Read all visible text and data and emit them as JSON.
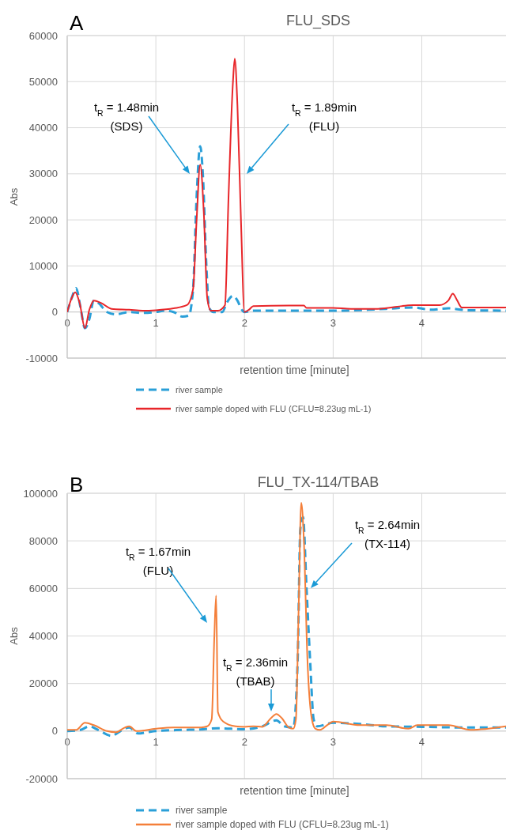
{
  "chart_data": [
    {
      "type": "line",
      "title": "FLU_SDS",
      "xlabel": "retention time [minute]",
      "ylabel": "Abs",
      "xlim": [
        0,
        4.95
      ],
      "ylim": [
        -10000,
        60000
      ],
      "xticks": [
        0,
        1,
        2,
        3,
        4
      ],
      "yticks": [
        -10000,
        0,
        10000,
        20000,
        30000,
        40000,
        50000,
        60000
      ],
      "grid": true,
      "legend": "bottom",
      "marker": "none",
      "annotations": [
        "A",
        "t$_{R}$ = 1.48min\n(SDS)",
        "t$_{R}$ = 1.89min\n(FLU)"
      ],
      "series": [
        {
          "name": "river sample",
          "color": "#2a9fd8",
          "line_style": "dashed",
          "x": [
            0,
            0.05,
            0.1,
            0.15,
            0.2,
            0.25,
            0.3,
            0.35,
            0.45,
            0.55,
            0.7,
            0.85,
            1.0,
            1.1,
            1.2,
            1.3,
            1.37,
            1.42,
            1.46,
            1.5,
            1.53,
            1.57,
            1.6,
            1.65,
            1.75,
            1.8,
            1.87,
            1.92,
            1.97,
            2.0,
            2.1,
            2.5,
            3.0,
            3.4,
            3.6,
            3.9,
            4.1,
            4.3,
            4.5,
            4.95
          ],
          "values": [
            0,
            3000,
            5200,
            1000,
            -3500,
            -1500,
            2500,
            2000,
            0,
            -500,
            0,
            -200,
            0,
            300,
            0,
            -1000,
            -800,
            5000,
            25000,
            36000,
            30000,
            10000,
            1000,
            0,
            0,
            2000,
            3500,
            2500,
            500,
            0,
            300,
            300,
            300,
            500,
            700,
            1000,
            500,
            800,
            400,
            300
          ]
        },
        {
          "name": "river sample doped with FLU (CFLU=8.23ug mL-1)",
          "color": "#e8262a",
          "line_style": "solid",
          "x": [
            0,
            0.05,
            0.09,
            0.14,
            0.2,
            0.25,
            0.3,
            0.38,
            0.5,
            0.7,
            0.85,
            1.0,
            1.2,
            1.35,
            1.42,
            1.46,
            1.5,
            1.54,
            1.58,
            1.62,
            1.7,
            1.78,
            1.82,
            1.87,
            1.89,
            1.92,
            1.96,
            2.0,
            2.05,
            2.1,
            2.5,
            2.67,
            2.7,
            3.0,
            3.2,
            3.5,
            3.9,
            4.2,
            4.3,
            4.35,
            4.4,
            4.45,
            4.95
          ],
          "values": [
            0,
            3000,
            4300,
            2000,
            -3500,
            500,
            2500,
            2000,
            700,
            500,
            300,
            400,
            800,
            1500,
            5000,
            20000,
            32000,
            22000,
            3000,
            300,
            300,
            1500,
            25000,
            50000,
            55000,
            45000,
            20000,
            0,
            500,
            1300,
            1400,
            1400,
            900,
            900,
            700,
            700,
            1500,
            1500,
            2500,
            4000,
            2500,
            1000,
            1000
          ]
        }
      ]
    },
    {
      "type": "line",
      "title": "FLU_TX-114/TBAB",
      "xlabel": "retention time [minute]",
      "ylabel": "Abs",
      "xlim": [
        0,
        4.95
      ],
      "ylim": [
        -20000,
        100000
      ],
      "xticks": [
        0,
        1,
        2,
        3,
        4
      ],
      "yticks": [
        -20000,
        0,
        20000,
        40000,
        60000,
        80000,
        100000
      ],
      "grid": true,
      "legend": "bottom",
      "marker": "none",
      "annotations": [
        "B",
        "t$_{R}$ = 1.67min\n(FLU)",
        "t$_{R}$ = 2.36min\n(TBAB)",
        "t$_{R}$ = 2.64min\n(TX-114)"
      ],
      "series": [
        {
          "name": "river sample",
          "color": "#2a9fd8",
          "line_style": "dashed",
          "x": [
            0,
            0.15,
            0.25,
            0.35,
            0.5,
            0.6,
            0.7,
            0.8,
            0.9,
            1.0,
            1.3,
            1.5,
            1.7,
            2.0,
            2.2,
            2.36,
            2.45,
            2.55,
            2.6,
            2.63,
            2.66,
            2.7,
            2.74,
            2.78,
            2.82,
            3.0,
            3.3,
            3.6,
            4.0,
            4.5,
            4.95
          ],
          "values": [
            0,
            500,
            2000,
            500,
            -2000,
            0,
            1500,
            -1000,
            -500,
            0,
            500,
            700,
            1200,
            800,
            2000,
            4500,
            2000,
            1500,
            30000,
            85000,
            90000,
            60000,
            30000,
            5000,
            2000,
            3500,
            3000,
            2000,
            1800,
            1500,
            1500
          ]
        },
        {
          "name": "river sample doped with FLU (CFLU=8.23ug mL-1)",
          "color": "#f47f3a",
          "line_style": "solid",
          "x": [
            0,
            0.1,
            0.2,
            0.3,
            0.45,
            0.55,
            0.65,
            0.7,
            0.78,
            1.0,
            1.2,
            1.5,
            1.58,
            1.63,
            1.66,
            1.68,
            1.7,
            1.76,
            1.9,
            2.0,
            2.1,
            2.2,
            2.3,
            2.36,
            2.42,
            2.5,
            2.55,
            2.58,
            2.61,
            2.64,
            2.67,
            2.71,
            2.76,
            2.8,
            2.85,
            2.95,
            3.0,
            3.3,
            3.6,
            3.85,
            3.95,
            4.3,
            4.55,
            4.95
          ],
          "values": [
            500,
            500,
            3500,
            2500,
            0,
            -500,
            1500,
            2000,
            0,
            1000,
            1500,
            1500,
            2000,
            5000,
            40000,
            57000,
            8000,
            4000,
            2000,
            1800,
            2000,
            1800,
            5500,
            7200,
            5500,
            1500,
            1000,
            5000,
            50000,
            96000,
            80000,
            30000,
            5000,
            1000,
            500,
            3000,
            4000,
            2500,
            2500,
            1000,
            2500,
            2500,
            500,
            2000
          ]
        }
      ]
    }
  ]
}
